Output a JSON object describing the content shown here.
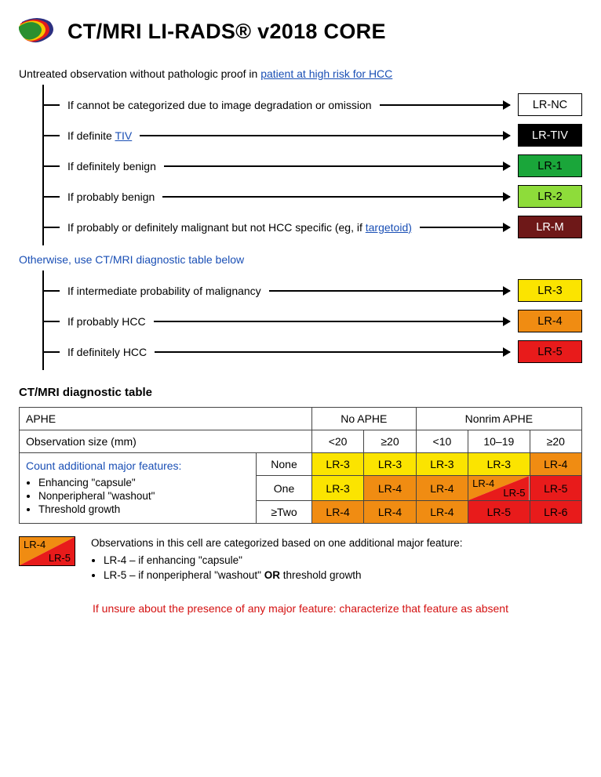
{
  "title": "CT/MRI LI-RADS® v2018 CORE",
  "logo_colors": {
    "back": "#2c2f80",
    "mid": "#e31b1b",
    "over": "#f6c600",
    "front": "#2a8f2f"
  },
  "intro_prefix": "Untreated observation without pathologic proof in ",
  "intro_link": "patient at high risk for HCC",
  "tree1": [
    {
      "text": "If cannot be categorized due to image degradation or omission",
      "badge": "LR-NC",
      "bg": "#ffffff",
      "fg": "#000000"
    },
    {
      "text": "If definite ",
      "link": "TIV",
      "badge": "LR-TIV",
      "bg": "#000000",
      "fg": "#ffffff"
    },
    {
      "text": "If definitely benign",
      "badge": "LR-1",
      "bg": "#1aa63a",
      "fg": "#000000"
    },
    {
      "text": "If probably benign",
      "badge": "LR-2",
      "bg": "#8edc3a",
      "fg": "#000000"
    },
    {
      "text": "If probably or definitely malignant but not HCC specific (eg, if ",
      "link": "targetoid)",
      "badge": "LR-M",
      "bg": "#6e1818",
      "fg": "#ffffff"
    }
  ],
  "otherwise": "Otherwise, use CT/MRI diagnostic table below",
  "tree2": [
    {
      "text": "If intermediate probability of malignancy",
      "badge": "LR-3",
      "bg": "#fbe400",
      "fg": "#000000"
    },
    {
      "text": "If probably HCC",
      "badge": "LR-4",
      "bg": "#f08c12",
      "fg": "#000000"
    },
    {
      "text": "If definitely HCC",
      "badge": "LR-5",
      "bg": "#e81b1b",
      "fg": "#000000"
    }
  ],
  "table_title": "CT/MRI diagnostic table",
  "table": {
    "aphe_header": "APHE",
    "no_aphe": "No APHE",
    "nonrim_aphe": "Nonrim APHE",
    "obs_size": "Observation size (mm)",
    "sizes": [
      "<20",
      "≥20",
      "<10",
      "10–19",
      "≥20"
    ],
    "features_title": "Count additional major features:",
    "features": [
      "Enhancing \"capsule\"",
      "Nonperipheral \"washout\"",
      "Threshold growth"
    ],
    "row_labels": [
      "None",
      "One",
      "≥Two"
    ],
    "colors": {
      "lr3": "#fbe400",
      "lr4": "#f08c12",
      "lr5": "#e81b1b",
      "lr6": "#e81b1b"
    },
    "grid": [
      [
        {
          "t": "LR-3",
          "c": "lr3"
        },
        {
          "t": "LR-3",
          "c": "lr3"
        },
        {
          "t": "LR-3",
          "c": "lr3"
        },
        {
          "t": "LR-3",
          "c": "lr3"
        },
        {
          "t": "LR-4",
          "c": "lr4"
        }
      ],
      [
        {
          "t": "LR-3",
          "c": "lr3"
        },
        {
          "t": "LR-4",
          "c": "lr4"
        },
        {
          "t": "LR-4",
          "c": "lr4"
        },
        {
          "split": true,
          "top": "LR-4",
          "bot": "LR-5",
          "ctop": "lr4",
          "cbot": "lr5"
        },
        {
          "t": "LR-5",
          "c": "lr5"
        }
      ],
      [
        {
          "t": "LR-4",
          "c": "lr4"
        },
        {
          "t": "LR-4",
          "c": "lr4"
        },
        {
          "t": "LR-4",
          "c": "lr4"
        },
        {
          "t": "LR-5",
          "c": "lr5"
        },
        {
          "t": "LR-6",
          "c": "lr6"
        }
      ]
    ]
  },
  "legend": {
    "top": "LR-4",
    "bot": "LR-5",
    "ctop": "#f08c12",
    "cbot": "#e81b1b",
    "text": "Observations in this cell are categorized based on one additional major feature:",
    "items": [
      "LR-4 – if enhancing \"capsule\"",
      "LR-5 – if nonperipheral \"washout\" OR threshold growth"
    ]
  },
  "warn": "If unsure about the presence of any major feature: characterize that feature as absent"
}
